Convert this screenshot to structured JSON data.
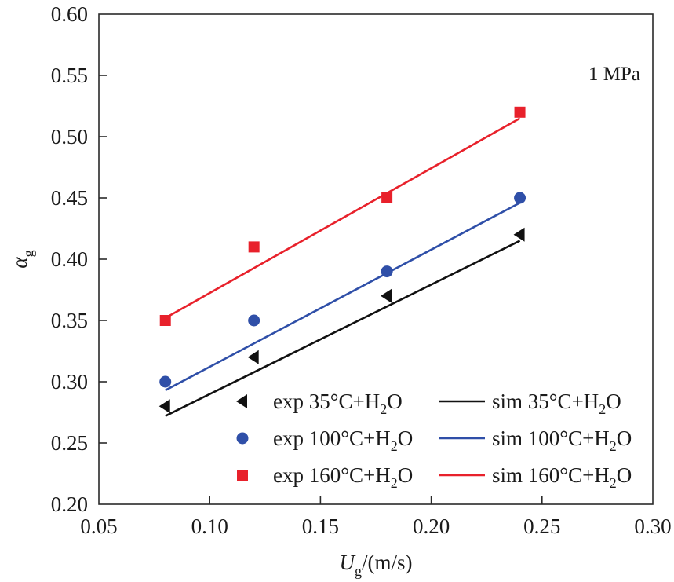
{
  "chart_data": {
    "type": "scatter",
    "title": "",
    "annotation": "1 MPa",
    "xlabel": {
      "main": "U",
      "sub": "g",
      "unit": "/(m/s)"
    },
    "ylabel": {
      "main": "α",
      "sub": "g"
    },
    "xlim": [
      0.05,
      0.3
    ],
    "ylim": [
      0.2,
      0.6
    ],
    "xticks": [
      0.05,
      0.1,
      0.15,
      0.2,
      0.25,
      0.3
    ],
    "xtick_labels": [
      "0.05",
      "0.10",
      "0.15",
      "0.20",
      "0.25",
      "0.30"
    ],
    "yticks": [
      0.2,
      0.25,
      0.3,
      0.35,
      0.4,
      0.45,
      0.5,
      0.55,
      0.6
    ],
    "ytick_labels": [
      "0.20",
      "0.25",
      "0.30",
      "0.35",
      "0.40",
      "0.45",
      "0.50",
      "0.55",
      "0.60"
    ],
    "grid": false,
    "legend_position": "bottom-right",
    "series": [
      {
        "name": "exp 35°C+H2O",
        "label_prefix": "exp",
        "label_temp": "35°C+H",
        "label_sub": "2",
        "label_suffix": "O",
        "kind": "scatter",
        "marker": "triangle-left",
        "color": "#111111",
        "x": [
          0.08,
          0.12,
          0.18,
          0.24
        ],
        "y": [
          0.28,
          0.32,
          0.37,
          0.42
        ]
      },
      {
        "name": "exp 100°C+H2O",
        "label_prefix": "exp",
        "label_temp": "100°C+H",
        "label_sub": "2",
        "label_suffix": "O",
        "kind": "scatter",
        "marker": "circle",
        "color": "#2f4fa8",
        "x": [
          0.08,
          0.12,
          0.18,
          0.24
        ],
        "y": [
          0.3,
          0.35,
          0.39,
          0.45
        ]
      },
      {
        "name": "exp 160°C+H2O",
        "label_prefix": "exp",
        "label_temp": "160°C+H",
        "label_sub": "2",
        "label_suffix": "O",
        "kind": "scatter",
        "marker": "square",
        "color": "#e8212b",
        "x": [
          0.08,
          0.12,
          0.18,
          0.24
        ],
        "y": [
          0.35,
          0.41,
          0.45,
          0.52
        ]
      },
      {
        "name": "sim 35°C+H2O",
        "label_prefix": "sim",
        "label_temp": "35°C+H",
        "label_sub": "2",
        "label_suffix": "O",
        "kind": "line",
        "color": "#111111",
        "x": [
          0.08,
          0.24
        ],
        "y": [
          0.272,
          0.415
        ]
      },
      {
        "name": "sim 100°C+H2O",
        "label_prefix": "sim",
        "label_temp": "100°C+H",
        "label_sub": "2",
        "label_suffix": "O",
        "kind": "line",
        "color": "#2f4fa8",
        "x": [
          0.08,
          0.24
        ],
        "y": [
          0.293,
          0.446
        ]
      },
      {
        "name": "sim 160°C+H2O",
        "label_prefix": "sim",
        "label_temp": "160°C+H",
        "label_sub": "2",
        "label_suffix": "O",
        "kind": "line",
        "color": "#e8212b",
        "x": [
          0.08,
          0.24
        ],
        "y": [
          0.352,
          0.515
        ]
      }
    ]
  }
}
